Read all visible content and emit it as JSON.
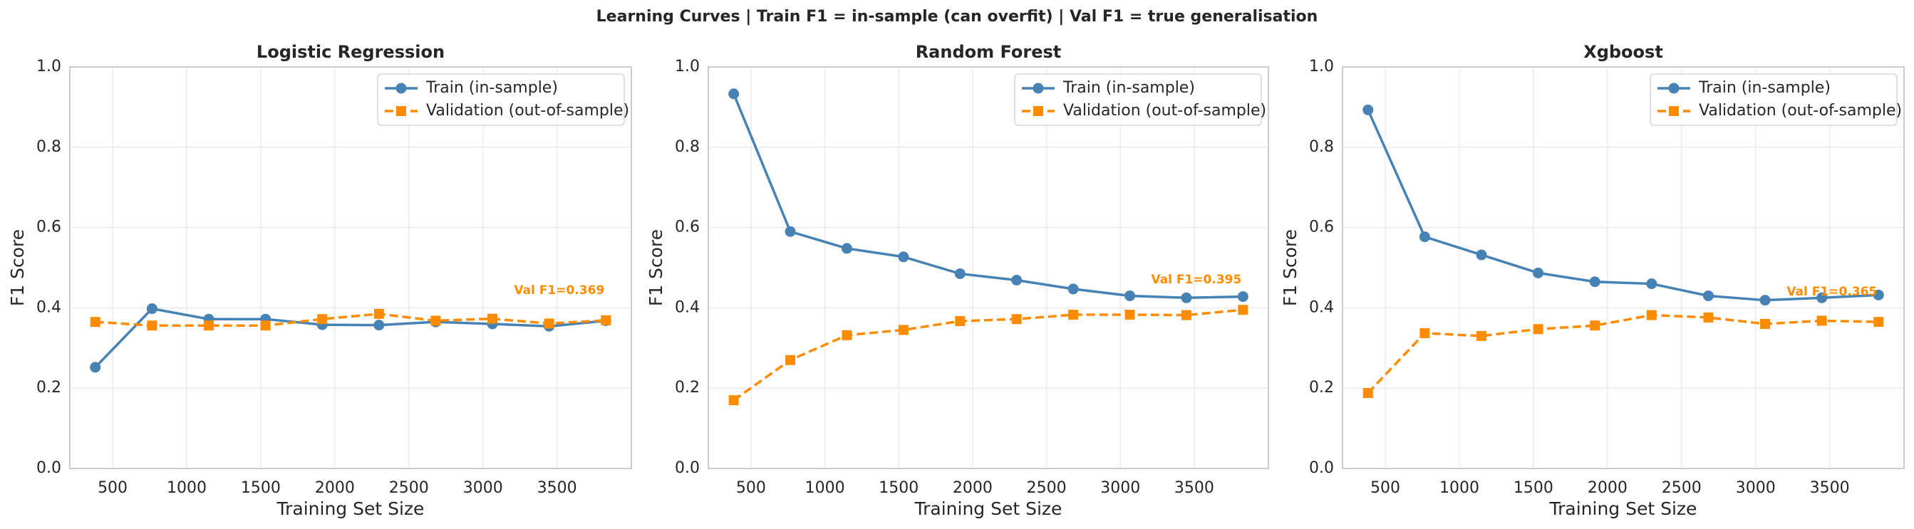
{
  "title": "Learning Curves  |  Train F1 = in-sample (can overfit)  |  Val F1 = true generalisation",
  "chart_data": [
    {
      "type": "line",
      "title": "Logistic Regression",
      "x_label": "Training Set Size",
      "y_label": "F1 Score",
      "x": [
        383,
        766,
        1149,
        1532,
        1915,
        2298,
        2681,
        3064,
        3447,
        3830
      ],
      "series": [
        {
          "name": "Train (in-sample)",
          "color": "#4682b4",
          "values": [
            0.252,
            0.398,
            0.372,
            0.372,
            0.358,
            0.357,
            0.365,
            0.36,
            0.354,
            0.368
          ]
        },
        {
          "name": "Validation (out-of-sample)",
          "color": "#ff8c00",
          "values": [
            0.365,
            0.356,
            0.356,
            0.356,
            0.372,
            0.385,
            0.368,
            0.373,
            0.361,
            0.369
          ]
        }
      ],
      "annotation": "Val F1=0.369",
      "xlim": [
        211,
        4002
      ],
      "ylim": [
        0,
        1
      ],
      "xticks": [
        500,
        1000,
        1500,
        2000,
        2500,
        3000,
        3500
      ],
      "yticks": [
        {
          "value": 0,
          "label": "0.0"
        },
        0.2,
        0.4,
        0.6,
        0.8,
        {
          "value": 1,
          "label": "1.0"
        }
      ],
      "grid": true,
      "legend": "upper right"
    },
    {
      "type": "line",
      "title": "Random Forest",
      "x_label": "Training Set Size",
      "y_label": "F1 Score",
      "x": [
        383,
        766,
        1149,
        1532,
        1915,
        2298,
        2681,
        3064,
        3447,
        3830
      ],
      "series": [
        {
          "name": "Train (in-sample)",
          "color": "#4682b4",
          "values": [
            0.933,
            0.59,
            0.548,
            0.527,
            0.485,
            0.469,
            0.447,
            0.43,
            0.425,
            0.428
          ]
        },
        {
          "name": "Validation (out-of-sample)",
          "color": "#ff8c00",
          "values": [
            0.17,
            0.27,
            0.332,
            0.345,
            0.367,
            0.372,
            0.383,
            0.383,
            0.382,
            0.395
          ]
        }
      ],
      "annotation": "Val F1=0.395",
      "xlim": [
        211,
        4002
      ],
      "ylim": [
        0,
        1
      ],
      "xticks": [
        500,
        1000,
        1500,
        2000,
        2500,
        3000,
        3500
      ],
      "yticks": [
        {
          "value": 0,
          "label": "0.0"
        },
        0.2,
        0.4,
        0.6,
        0.8,
        {
          "value": 1,
          "label": "1.0"
        }
      ],
      "grid": true,
      "legend": "upper right"
    },
    {
      "type": "line",
      "title": "Xgboost",
      "x_label": "Training Set Size",
      "y_label": "F1 Score",
      "x": [
        383,
        766,
        1149,
        1532,
        1915,
        2298,
        2681,
        3064,
        3447,
        3830
      ],
      "series": [
        {
          "name": "Train (in-sample)",
          "color": "#4682b4",
          "values": [
            0.893,
            0.577,
            0.532,
            0.487,
            0.465,
            0.46,
            0.43,
            0.419,
            0.425,
            0.432
          ]
        },
        {
          "name": "Validation (out-of-sample)",
          "color": "#ff8c00",
          "values": [
            0.188,
            0.337,
            0.33,
            0.347,
            0.356,
            0.382,
            0.376,
            0.36,
            0.368,
            0.365
          ]
        }
      ],
      "annotation": "Val F1=0.365",
      "xlim": [
        211,
        4002
      ],
      "ylim": [
        0,
        1
      ],
      "xticks": [
        500,
        1000,
        1500,
        2000,
        2500,
        3000,
        3500
      ],
      "yticks": [
        {
          "value": 0,
          "label": "0.0"
        },
        0.2,
        0.4,
        0.6,
        0.8,
        {
          "value": 1,
          "label": "1.0"
        }
      ],
      "grid": true,
      "legend": "upper right"
    }
  ]
}
